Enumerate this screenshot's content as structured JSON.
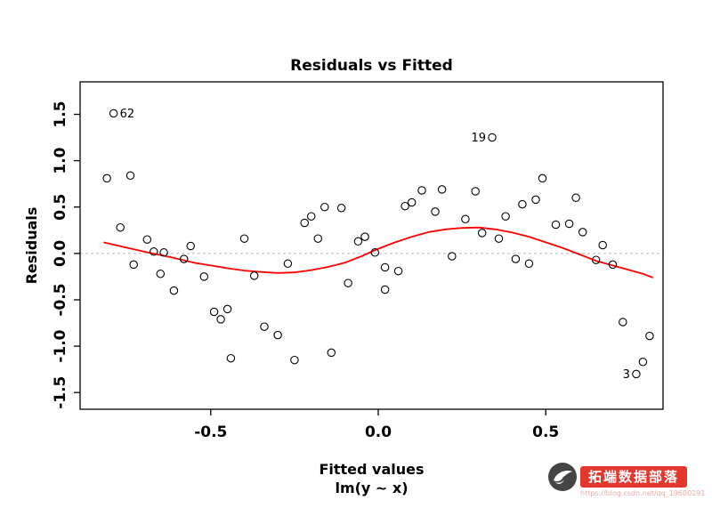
{
  "chart_data": {
    "type": "scatter",
    "title": "Residuals vs Fitted",
    "xlabel": "Fitted values",
    "xlabel2": "lm(y ~ x)",
    "ylabel": "Residuals",
    "xlim": [
      -0.89,
      0.85
    ],
    "ylim": [
      -1.68,
      1.85
    ],
    "x_ticks": [
      -0.5,
      0.0,
      0.5
    ],
    "y_ticks": [
      -1.5,
      -1.0,
      -0.5,
      0.0,
      0.5,
      1.0,
      1.5
    ],
    "zero_line_y": 0,
    "grid": false,
    "points": [
      [
        -0.81,
        0.81
      ],
      [
        -0.74,
        0.84
      ],
      [
        -0.77,
        0.28
      ],
      [
        -0.73,
        -0.12
      ],
      [
        -0.69,
        0.15
      ],
      [
        -0.67,
        0.02
      ],
      [
        -0.65,
        -0.22
      ],
      [
        -0.64,
        0.01
      ],
      [
        -0.61,
        -0.4
      ],
      [
        -0.58,
        -0.06
      ],
      [
        -0.56,
        0.08
      ],
      [
        -0.52,
        -0.25
      ],
      [
        -0.49,
        -0.63
      ],
      [
        -0.47,
        -0.71
      ],
      [
        -0.45,
        -0.6
      ],
      [
        -0.44,
        -1.13
      ],
      [
        -0.4,
        0.16
      ],
      [
        -0.37,
        -0.24
      ],
      [
        -0.34,
        -0.79
      ],
      [
        -0.3,
        -0.88
      ],
      [
        -0.25,
        -1.15
      ],
      [
        -0.27,
        -0.11
      ],
      [
        -0.22,
        0.33
      ],
      [
        -0.2,
        0.4
      ],
      [
        -0.18,
        0.16
      ],
      [
        -0.16,
        0.5
      ],
      [
        -0.14,
        -1.07
      ],
      [
        -0.11,
        0.49
      ],
      [
        -0.09,
        -0.32
      ],
      [
        -0.06,
        0.13
      ],
      [
        -0.04,
        0.18
      ],
      [
        -0.01,
        0.01
      ],
      [
        0.02,
        -0.15
      ],
      [
        0.02,
        -0.39
      ],
      [
        0.06,
        -0.19
      ],
      [
        0.08,
        0.51
      ],
      [
        0.1,
        0.55
      ],
      [
        0.13,
        0.68
      ],
      [
        0.17,
        0.45
      ],
      [
        0.19,
        0.69
      ],
      [
        0.22,
        -0.03
      ],
      [
        0.26,
        0.37
      ],
      [
        0.29,
        0.67
      ],
      [
        0.31,
        0.22
      ],
      [
        0.36,
        0.16
      ],
      [
        0.38,
        0.4
      ],
      [
        0.41,
        -0.06
      ],
      [
        0.43,
        0.53
      ],
      [
        0.45,
        -0.11
      ],
      [
        0.47,
        0.58
      ],
      [
        0.49,
        0.81
      ],
      [
        0.53,
        0.31
      ],
      [
        0.57,
        0.32
      ],
      [
        0.59,
        0.6
      ],
      [
        0.61,
        0.23
      ],
      [
        0.65,
        -0.07
      ],
      [
        0.67,
        0.09
      ],
      [
        0.7,
        -0.12
      ],
      [
        0.73,
        -0.74
      ],
      [
        0.79,
        -1.17
      ],
      [
        0.81,
        -0.89
      ]
    ],
    "labeled_points": [
      {
        "label": "62",
        "x": -0.79,
        "y": 1.51,
        "side": "right"
      },
      {
        "label": "19",
        "x": 0.34,
        "y": 1.25,
        "side": "left"
      },
      {
        "label": "3",
        "x": 0.77,
        "y": -1.3,
        "side": "left"
      }
    ],
    "smooth": [
      [
        -0.82,
        0.12
      ],
      [
        -0.76,
        0.07
      ],
      [
        -0.7,
        0.02
      ],
      [
        -0.62,
        -0.04
      ],
      [
        -0.55,
        -0.1
      ],
      [
        -0.5,
        -0.13
      ],
      [
        -0.45,
        -0.16
      ],
      [
        -0.4,
        -0.185
      ],
      [
        -0.35,
        -0.2
      ],
      [
        -0.3,
        -0.21
      ],
      [
        -0.25,
        -0.205
      ],
      [
        -0.2,
        -0.18
      ],
      [
        -0.15,
        -0.145
      ],
      [
        -0.1,
        -0.1
      ],
      [
        -0.05,
        -0.03
      ],
      [
        0.0,
        0.05
      ],
      [
        0.05,
        0.12
      ],
      [
        0.1,
        0.18
      ],
      [
        0.15,
        0.23
      ],
      [
        0.2,
        0.26
      ],
      [
        0.25,
        0.275
      ],
      [
        0.3,
        0.28
      ],
      [
        0.35,
        0.26
      ],
      [
        0.4,
        0.225
      ],
      [
        0.45,
        0.18
      ],
      [
        0.5,
        0.12
      ],
      [
        0.55,
        0.06
      ],
      [
        0.6,
        -0.01
      ],
      [
        0.65,
        -0.08
      ],
      [
        0.7,
        -0.13
      ],
      [
        0.75,
        -0.18
      ],
      [
        0.79,
        -0.22
      ],
      [
        0.82,
        -0.26
      ]
    ],
    "colors": {
      "point": "#000000",
      "smooth_line": "#ff0000",
      "zero_line": "#b8b8b8",
      "axis": "#000000"
    },
    "legend": null
  },
  "watermark": {
    "brand": "拓端数据部落",
    "url": "https://blog.csdn.net/qq_19600291",
    "badge_color": "#e3372d"
  }
}
